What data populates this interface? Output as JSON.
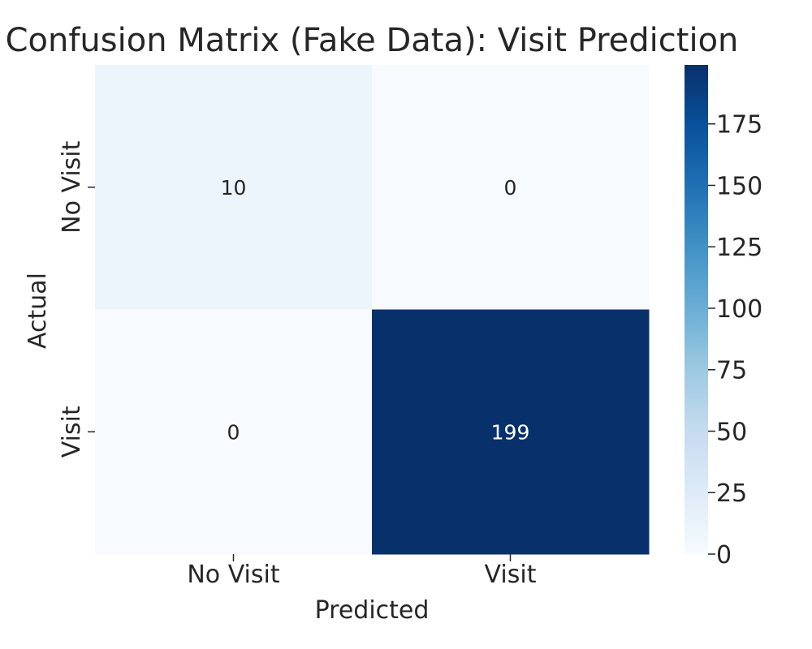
{
  "chart_data": {
    "type": "heatmap",
    "title": "Confusion Matrix (Fake Data): Visit Prediction",
    "xlabel": "Predicted",
    "ylabel": "Actual",
    "x_categories": [
      "No Visit",
      "Visit"
    ],
    "y_categories": [
      "No Visit",
      "Visit"
    ],
    "values": [
      [
        10,
        0
      ],
      [
        0,
        199
      ]
    ],
    "annotations": [
      [
        "10",
        "0"
      ],
      [
        "0",
        "199"
      ]
    ],
    "colormap": "Blues",
    "colorbar": {
      "range": [
        0,
        199
      ],
      "ticks": [
        0,
        25,
        50,
        75,
        100,
        125,
        150,
        175
      ],
      "tick_labels": [
        "0",
        "25",
        "50",
        "75",
        "100",
        "125",
        "150",
        "175"
      ]
    },
    "grid": false,
    "legend": "colorbar-right"
  }
}
